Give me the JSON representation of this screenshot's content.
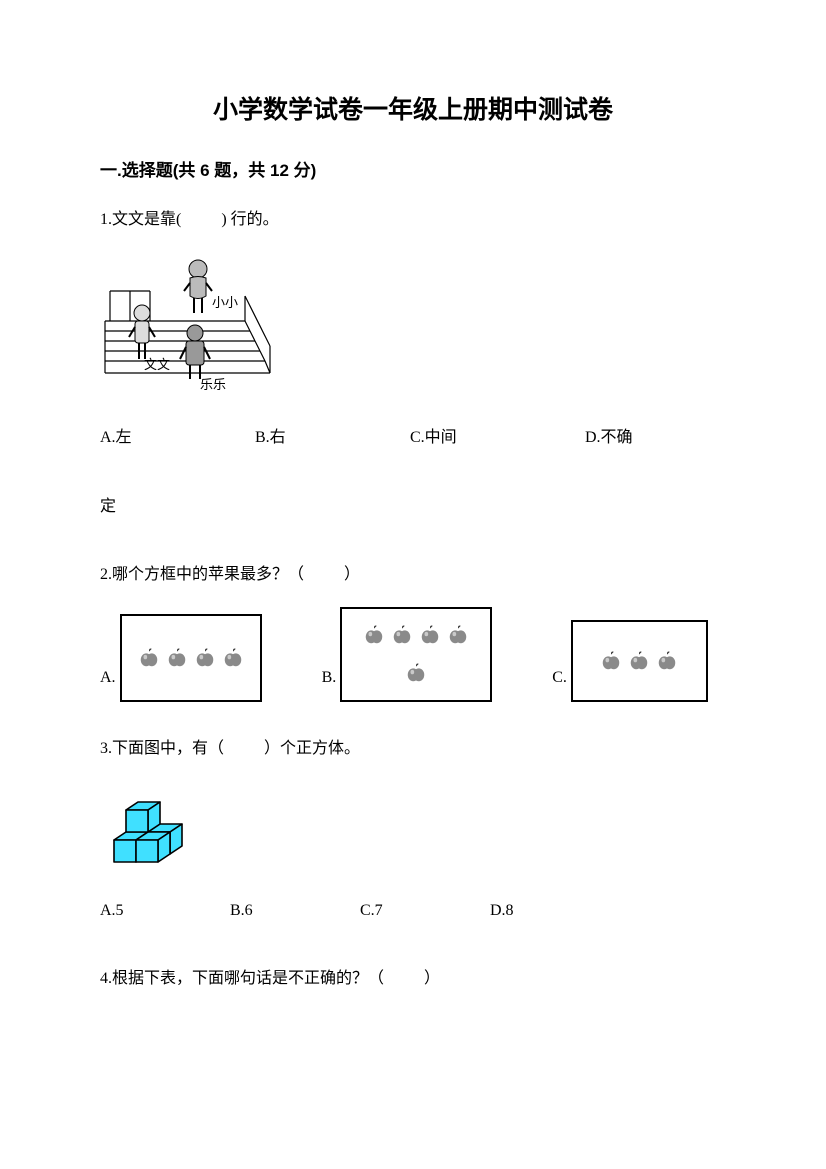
{
  "title": "小学数学试卷一年级上册期中测试卷",
  "section1": {
    "header": "一.选择题(共 6 题，共 12 分)",
    "q1": {
      "text_pre": "1.文文是靠(",
      "text_post": ") 行的。",
      "labels": {
        "xiaoxiao": "小小",
        "wenwen": "文文",
        "lele": "乐乐"
      },
      "opts": {
        "a": "A.左",
        "b": "B.右",
        "c": "C.中间",
        "d": "D.不确",
        "d_cont": "定"
      }
    },
    "q2": {
      "text_pre": "2.哪个方框中的苹果最多？（",
      "text_post": "）",
      "opts": {
        "a": "A.",
        "b": "B.",
        "c": "C."
      },
      "counts": {
        "a": 4,
        "b": 5,
        "c": 3
      },
      "box_border": "#000000",
      "apple_fill": "#8a8a8a",
      "apple_stem": "#333333"
    },
    "q3": {
      "text_pre": "3.下面图中，有（",
      "text_post": "）个正方体。",
      "cube_fill": "#40e0ff",
      "cube_stroke": "#000000",
      "opts": {
        "a": "A.5",
        "b": "B.6",
        "c": "C.7",
        "d": "D.8"
      }
    },
    "q4": {
      "text_pre": "4.根据下表，下面哪句话是不正确的？（",
      "text_post": "）"
    }
  }
}
